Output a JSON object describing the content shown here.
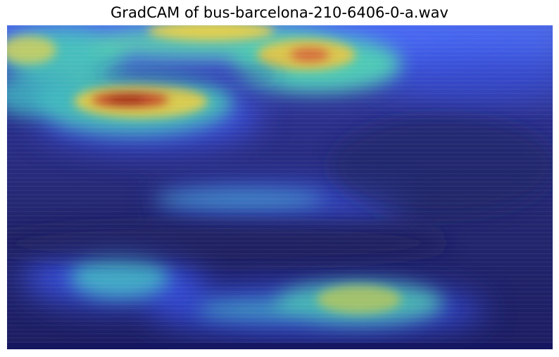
{
  "title": "GradCAM of bus-barcelona-210-6406-0-a.wav",
  "heatmap": {
    "colormap": "jet",
    "background_color": "#1e1f66",
    "hot_color": "#b0241a",
    "warm_color": "#e8d24a",
    "cool_color": "#3ec6c8"
  }
}
